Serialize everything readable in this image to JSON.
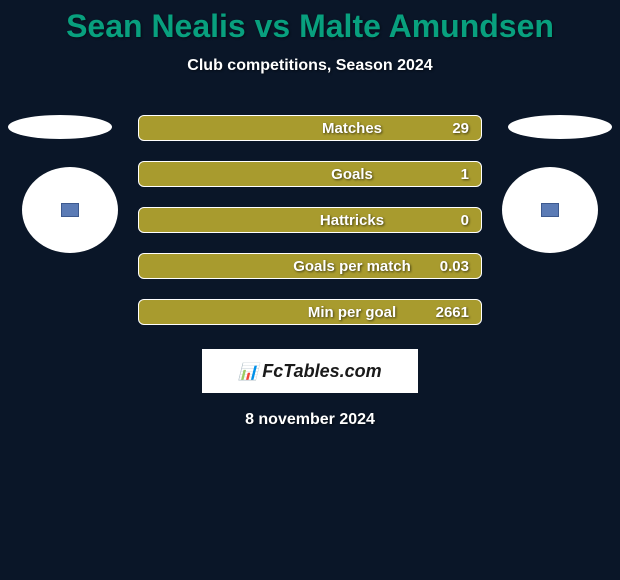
{
  "title": "Sean Nealis vs Malte Amundsen",
  "subtitle": "Club competitions, Season 2024",
  "stats": [
    {
      "label": "Matches",
      "value": "29"
    },
    {
      "label": "Goals",
      "value": "1"
    },
    {
      "label": "Hattricks",
      "value": "0"
    },
    {
      "label": "Goals per match",
      "value": "0.03"
    },
    {
      "label": "Min per goal",
      "value": "2661"
    }
  ],
  "logo": {
    "icon": "📊",
    "text": "FcTables.com"
  },
  "date": "8 november 2024",
  "colors": {
    "background": "#0a1628",
    "title": "#08a07e",
    "bar_bg": "#a89b2e",
    "bar_border": "#ffffff",
    "text": "#ffffff",
    "small_box": "#5b7bb5"
  }
}
